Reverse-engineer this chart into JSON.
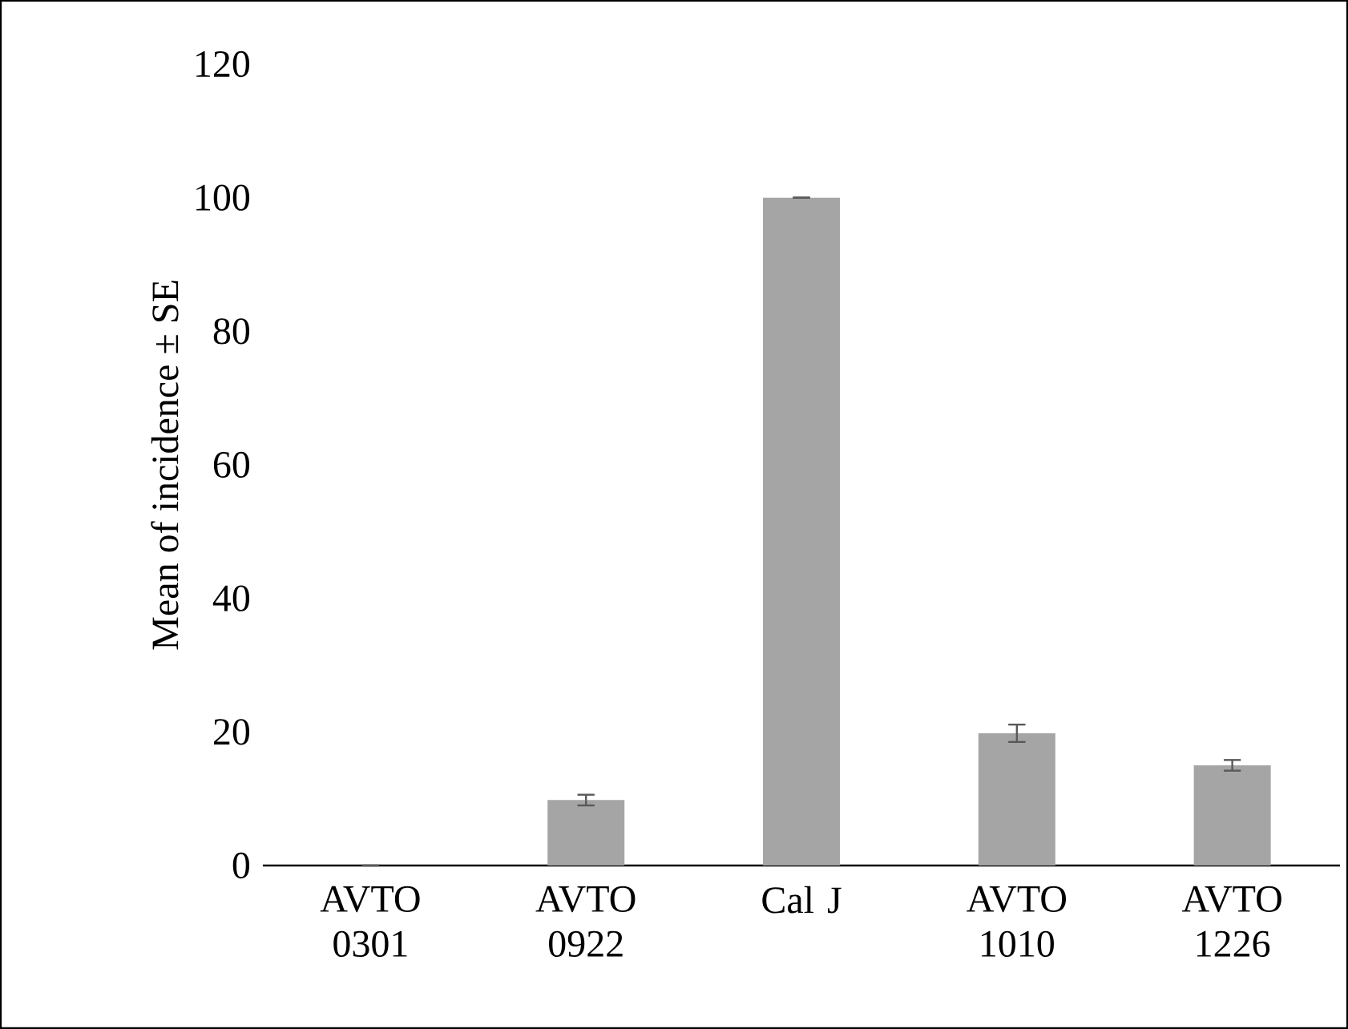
{
  "chart_data": {
    "type": "bar",
    "categories": [
      "AVTO 0301",
      "AVTO 0922",
      "Cal J",
      "AVTO 1010",
      "AVTO 1226"
    ],
    "values": [
      0,
      9.8,
      100,
      19.8,
      15.0
    ],
    "errors": [
      0,
      0.8,
      0,
      1.3,
      0.8
    ],
    "color": "#a5a5a5",
    "ylabel": "Mean of incidence ± SE",
    "ylim": [
      0,
      120
    ],
    "yticks": [
      0,
      20,
      40,
      60,
      80,
      100,
      120
    ],
    "grid": false
  }
}
